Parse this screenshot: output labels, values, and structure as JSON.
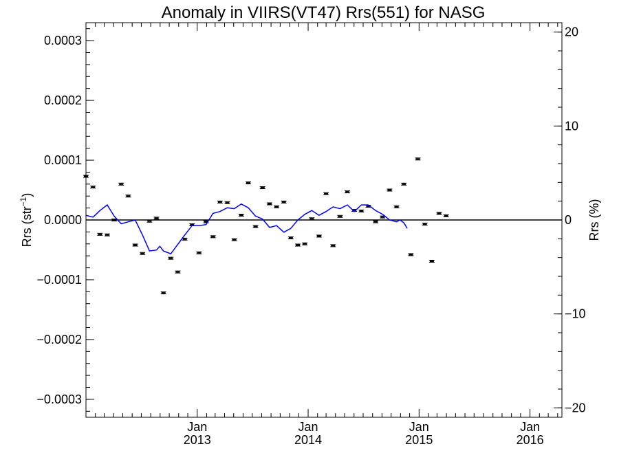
{
  "chart_data": {
    "type": "line",
    "title": "Anomaly in VIIRS(VT47) Rrs(551) for NASG",
    "ylabel_left": "Rrs (str",
    "ylabel_left_sup": "−1",
    "ylabel_left_tail": ")",
    "ylabel_right": "Rrs (%)",
    "xlabel": "",
    "x_range": [
      "2012-01-01",
      "2016-04-15"
    ],
    "ylim_left": [
      -0.00033,
      0.00033
    ],
    "ylim_right": [
      -21.0,
      21.0
    ],
    "grid": false,
    "zero_line": true,
    "left_ticks": [
      {
        "value": 0.0003,
        "label": "0.0003"
      },
      {
        "value": 0.0002,
        "label": "0.0002"
      },
      {
        "value": 0.0001,
        "label": "0.0001"
      },
      {
        "value": 0.0,
        "label": "0.0000"
      },
      {
        "value": -0.0001,
        "label": "−0.0001"
      },
      {
        "value": -0.0002,
        "label": "−0.0002"
      },
      {
        "value": -0.0003,
        "label": "−0.0003"
      }
    ],
    "right_ticks": [
      {
        "value": 20,
        "label": "20"
      },
      {
        "value": 10,
        "label": "10"
      },
      {
        "value": 0,
        "label": "0"
      },
      {
        "value": -10,
        "label": "−10"
      },
      {
        "value": -20,
        "label": "−20"
      }
    ],
    "x_ticks": [
      {
        "date": "2013-01-01",
        "month": "Jan",
        "year": "2013"
      },
      {
        "date": "2014-01-01",
        "month": "Jan",
        "year": "2014"
      },
      {
        "date": "2015-01-01",
        "month": "Jan",
        "year": "2015"
      },
      {
        "date": "2016-01-01",
        "month": "Jan",
        "year": "2016"
      }
    ],
    "series": [
      {
        "axis": "left",
        "style": "markers-with-errorbars",
        "color": "#000000",
        "points": [
          {
            "x": "2012-01-01",
            "y": 7.3e-05
          },
          {
            "x": "2012-01-24",
            "y": 5.5e-05
          },
          {
            "x": "2012-02-16",
            "y": -2.4e-05
          },
          {
            "x": "2012-03-11",
            "y": -2.5e-05
          },
          {
            "x": "2012-04-03",
            "y": 0.0
          },
          {
            "x": "2012-04-26",
            "y": 6e-05
          },
          {
            "x": "2012-05-19",
            "y": 4e-05
          },
          {
            "x": "2012-06-11",
            "y": -4.2e-05
          },
          {
            "x": "2012-07-05",
            "y": -5.6e-05
          },
          {
            "x": "2012-07-28",
            "y": -2e-06
          },
          {
            "x": "2012-08-20",
            "y": 3e-06
          },
          {
            "x": "2012-09-12",
            "y": -0.000122
          },
          {
            "x": "2012-10-06",
            "y": -6.4e-05
          },
          {
            "x": "2012-10-29",
            "y": -8.7e-05
          },
          {
            "x": "2012-11-21",
            "y": -3.2e-05
          },
          {
            "x": "2012-12-15",
            "y": -8e-06
          },
          {
            "x": "2013-01-07",
            "y": -5.5e-05
          },
          {
            "x": "2013-01-30",
            "y": -3e-06
          },
          {
            "x": "2013-02-22",
            "y": -2.8e-05
          },
          {
            "x": "2013-03-17",
            "y": 3e-05
          },
          {
            "x": "2013-04-10",
            "y": 2.9e-05
          },
          {
            "x": "2013-05-03",
            "y": -3.3e-05
          },
          {
            "x": "2013-05-26",
            "y": 8e-06
          },
          {
            "x": "2013-06-18",
            "y": 6.2e-05
          },
          {
            "x": "2013-07-12",
            "y": -1.1e-05
          },
          {
            "x": "2013-08-04",
            "y": 5.4e-05
          },
          {
            "x": "2013-08-27",
            "y": 2.7e-05
          },
          {
            "x": "2013-09-19",
            "y": 2.2e-05
          },
          {
            "x": "2013-10-13",
            "y": 3e-05
          },
          {
            "x": "2013-11-05",
            "y": -3e-05
          },
          {
            "x": "2013-11-28",
            "y": -4.2e-05
          },
          {
            "x": "2013-12-21",
            "y": -4e-05
          },
          {
            "x": "2014-01-13",
            "y": 2e-06
          },
          {
            "x": "2014-02-06",
            "y": -2.7e-05
          },
          {
            "x": "2014-03-01",
            "y": 4.4e-05
          },
          {
            "x": "2014-03-24",
            "y": -4.3e-05
          },
          {
            "x": "2014-04-16",
            "y": 6e-06
          },
          {
            "x": "2014-05-10",
            "y": 4.7e-05
          },
          {
            "x": "2014-06-02",
            "y": 1.6e-05
          },
          {
            "x": "2014-06-25",
            "y": 1.5e-05
          },
          {
            "x": "2014-07-18",
            "y": 2.3e-05
          },
          {
            "x": "2014-08-11",
            "y": -3e-06
          },
          {
            "x": "2014-09-03",
            "y": 5e-06
          },
          {
            "x": "2014-09-26",
            "y": 5e-05
          },
          {
            "x": "2014-10-19",
            "y": 2.2e-05
          },
          {
            "x": "2014-11-12",
            "y": 6e-05
          },
          {
            "x": "2014-12-05",
            "y": -5.8e-05
          },
          {
            "x": "2014-12-28",
            "y": 0.000102
          },
          {
            "x": "2015-01-20",
            "y": -7e-06
          },
          {
            "x": "2015-02-12",
            "y": -6.9e-05
          },
          {
            "x": "2015-03-08",
            "y": 1.1e-05
          },
          {
            "x": "2015-03-31",
            "y": 7e-06
          }
        ]
      },
      {
        "axis": "right",
        "style": "line",
        "color": "#0000ff",
        "points": [
          {
            "x": "2012-01-01",
            "y": 0.5
          },
          {
            "x": "2012-01-24",
            "y": 0.3
          },
          {
            "x": "2012-02-16",
            "y": 1.0
          },
          {
            "x": "2012-03-11",
            "y": 1.6
          },
          {
            "x": "2012-04-03",
            "y": 0.4
          },
          {
            "x": "2012-04-26",
            "y": -0.4
          },
          {
            "x": "2012-05-19",
            "y": -0.2
          },
          {
            "x": "2012-06-11",
            "y": 0.0
          },
          {
            "x": "2012-07-05",
            "y": -1.6
          },
          {
            "x": "2012-07-28",
            "y": -3.3
          },
          {
            "x": "2012-08-20",
            "y": -3.2
          },
          {
            "x": "2012-08-31",
            "y": -2.8
          },
          {
            "x": "2012-09-12",
            "y": -3.3
          },
          {
            "x": "2012-10-06",
            "y": -3.6
          },
          {
            "x": "2012-10-29",
            "y": -2.6
          },
          {
            "x": "2012-11-21",
            "y": -1.6
          },
          {
            "x": "2012-12-15",
            "y": -0.6
          },
          {
            "x": "2013-01-07",
            "y": -0.6
          },
          {
            "x": "2013-01-30",
            "y": -0.5
          },
          {
            "x": "2013-02-22",
            "y": 0.7
          },
          {
            "x": "2013-03-17",
            "y": 0.9
          },
          {
            "x": "2013-04-10",
            "y": 1.3
          },
          {
            "x": "2013-05-03",
            "y": 1.2
          },
          {
            "x": "2013-05-26",
            "y": 1.7
          },
          {
            "x": "2013-06-18",
            "y": 1.3
          },
          {
            "x": "2013-07-12",
            "y": 0.4
          },
          {
            "x": "2013-08-04",
            "y": 0.1
          },
          {
            "x": "2013-08-27",
            "y": -0.8
          },
          {
            "x": "2013-09-19",
            "y": -0.6
          },
          {
            "x": "2013-10-13",
            "y": -1.3
          },
          {
            "x": "2013-11-05",
            "y": -0.9
          },
          {
            "x": "2013-11-28",
            "y": 0.0
          },
          {
            "x": "2013-12-21",
            "y": 0.6
          },
          {
            "x": "2014-01-13",
            "y": 1.0
          },
          {
            "x": "2014-02-06",
            "y": 0.5
          },
          {
            "x": "2014-03-01",
            "y": 0.9
          },
          {
            "x": "2014-03-24",
            "y": 1.4
          },
          {
            "x": "2014-04-16",
            "y": 1.2
          },
          {
            "x": "2014-05-10",
            "y": 1.6
          },
          {
            "x": "2014-06-02",
            "y": 0.9
          },
          {
            "x": "2014-06-25",
            "y": 1.6
          },
          {
            "x": "2014-07-18",
            "y": 1.6
          },
          {
            "x": "2014-08-11",
            "y": 1.0
          },
          {
            "x": "2014-09-03",
            "y": 0.6
          },
          {
            "x": "2014-09-26",
            "y": 0.0
          },
          {
            "x": "2014-10-19",
            "y": -0.2
          },
          {
            "x": "2014-10-30",
            "y": 0.0
          },
          {
            "x": "2014-11-12",
            "y": -0.3
          },
          {
            "x": "2014-11-23",
            "y": -0.9
          }
        ]
      }
    ]
  }
}
